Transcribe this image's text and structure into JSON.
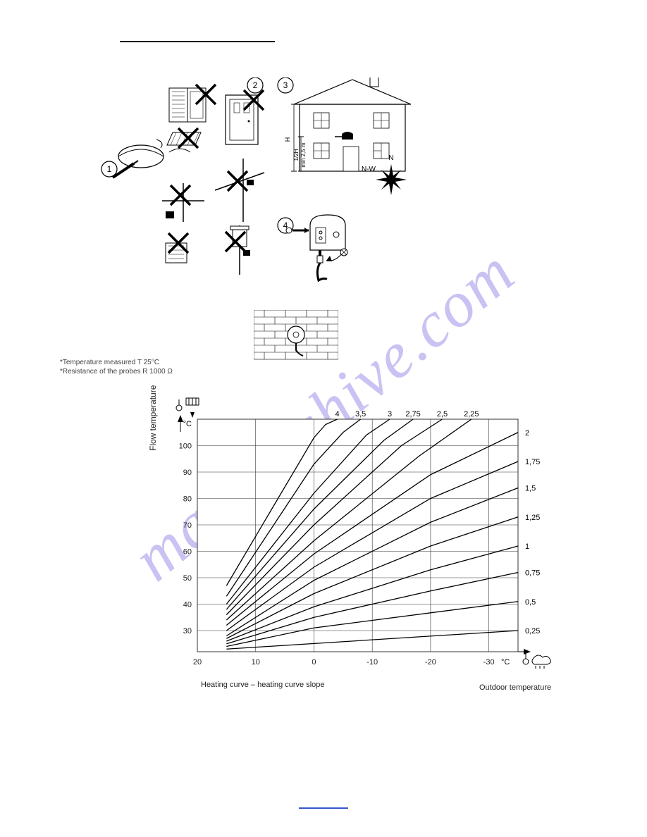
{
  "watermark_text": "manualshive.com",
  "footnotes": {
    "line1": "*Temperature measured T 25°C",
    "line2": "*Resistance of the probes R 1000 Ω"
  },
  "install_diagram": {
    "circle_labels": [
      "1",
      "2",
      "3",
      "4"
    ],
    "compass_labels": {
      "n": "N",
      "nw": "N-W"
    },
    "house_height_label": "H",
    "house_half_label": "1/2H",
    "house_min_label": "min 2,5 m",
    "line_color": "#000000",
    "fill_color": "#ffffff"
  },
  "chart": {
    "type": "line",
    "title_fontsize": 12,
    "y_label": "Flow temperature",
    "x_label_left": "Heating curve – heating curve slope",
    "x_label_right": "Outdoor temperature",
    "x_unit": "°C",
    "y_unit": "°C",
    "x_ticks": [
      20,
      10,
      0,
      -10,
      -20,
      -30
    ],
    "xlim": [
      20,
      -35
    ],
    "y_ticks": [
      30,
      40,
      50,
      60,
      70,
      80,
      90,
      100
    ],
    "ylim": [
      22,
      110
    ],
    "curve_top_labels": [
      {
        "v": "4",
        "x": -4
      },
      {
        "v": "3,5",
        "x": -8
      },
      {
        "v": "3",
        "x": -13
      },
      {
        "v": "2,75",
        "x": -17
      },
      {
        "v": "2,5",
        "x": -22
      },
      {
        "v": "2,25",
        "x": -27
      }
    ],
    "curve_right_labels": [
      {
        "v": "2",
        "y": 105
      },
      {
        "v": "1,75",
        "y": 94
      },
      {
        "v": "1,5",
        "y": 84
      },
      {
        "v": "1,25",
        "y": 73
      },
      {
        "v": "1",
        "y": 62
      },
      {
        "v": "0,75",
        "y": 52
      },
      {
        "v": "0,5",
        "y": 41
      },
      {
        "v": "0,25",
        "y": 30
      }
    ],
    "curves": [
      {
        "slope": 0.25,
        "points": [
          [
            15,
            23
          ],
          [
            -35,
            30
          ]
        ]
      },
      {
        "slope": 0.5,
        "points": [
          [
            15,
            24
          ],
          [
            0,
            31
          ],
          [
            -35,
            41
          ]
        ]
      },
      {
        "slope": 0.75,
        "points": [
          [
            15,
            25
          ],
          [
            0,
            35
          ],
          [
            -20,
            45
          ],
          [
            -35,
            52
          ]
        ]
      },
      {
        "slope": 1.0,
        "points": [
          [
            15,
            26
          ],
          [
            0,
            39
          ],
          [
            -20,
            53
          ],
          [
            -35,
            62
          ]
        ]
      },
      {
        "slope": 1.25,
        "points": [
          [
            15,
            27
          ],
          [
            0,
            44
          ],
          [
            -20,
            62
          ],
          [
            -35,
            73
          ]
        ]
      },
      {
        "slope": 1.5,
        "points": [
          [
            15,
            28
          ],
          [
            0,
            49
          ],
          [
            -20,
            71
          ],
          [
            -35,
            84
          ]
        ]
      },
      {
        "slope": 1.75,
        "points": [
          [
            15,
            30
          ],
          [
            0,
            54
          ],
          [
            -20,
            80
          ],
          [
            -35,
            94
          ]
        ]
      },
      {
        "slope": 2.0,
        "points": [
          [
            15,
            32
          ],
          [
            0,
            59
          ],
          [
            -20,
            89
          ],
          [
            -35,
            105
          ]
        ]
      },
      {
        "slope": 2.25,
        "points": [
          [
            15,
            34
          ],
          [
            0,
            64
          ],
          [
            -18,
            96
          ],
          [
            -27,
            110
          ]
        ]
      },
      {
        "slope": 2.5,
        "points": [
          [
            15,
            36
          ],
          [
            0,
            70
          ],
          [
            -15,
            100
          ],
          [
            -22,
            110
          ]
        ]
      },
      {
        "slope": 2.75,
        "points": [
          [
            15,
            38
          ],
          [
            0,
            76
          ],
          [
            -12,
            102
          ],
          [
            -17,
            110
          ]
        ]
      },
      {
        "slope": 3.0,
        "points": [
          [
            15,
            40
          ],
          [
            0,
            82
          ],
          [
            -9,
            104
          ],
          [
            -13,
            110
          ]
        ]
      },
      {
        "slope": 3.5,
        "points": [
          [
            15,
            43
          ],
          [
            0,
            93
          ],
          [
            -5,
            105
          ],
          [
            -8,
            110
          ]
        ]
      },
      {
        "slope": 4.0,
        "points": [
          [
            15,
            47
          ],
          [
            0,
            103
          ],
          [
            -2,
            108
          ],
          [
            -4,
            110
          ]
        ]
      }
    ],
    "grid_color": "#333333",
    "line_color": "#000000",
    "background_color": "#ffffff",
    "tick_fontsize": 11,
    "label_fontsize": 12,
    "line_width": 1,
    "grid_line_width": 0.6
  }
}
